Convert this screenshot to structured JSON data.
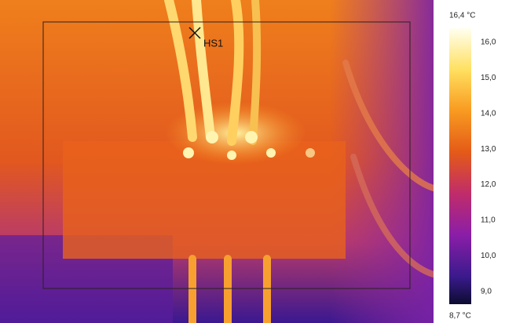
{
  "marker": {
    "label": "HS1"
  },
  "scale": {
    "max_label": "16,4 °C",
    "min_label": "8,7 °C",
    "ticks": [
      "16,0",
      "15,0",
      "14,0",
      "13,0",
      "12,0",
      "11,0",
      "10,0",
      "9,0"
    ]
  }
}
